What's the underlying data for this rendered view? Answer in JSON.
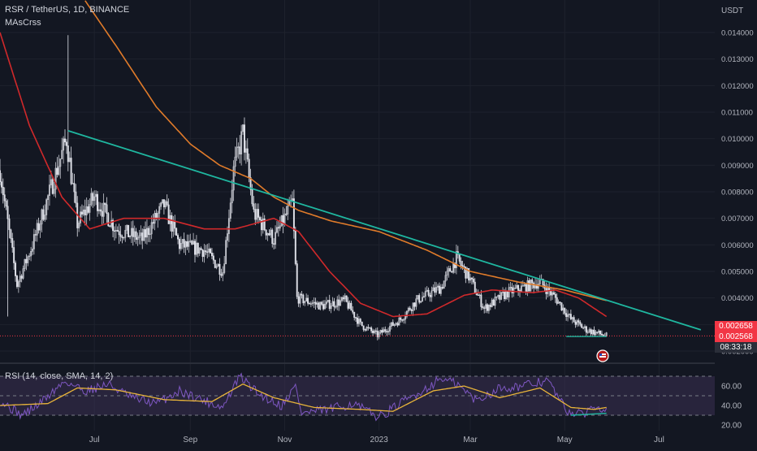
{
  "header": {
    "symbol_line": "RSR / TetherUS, 1D, BINANCE",
    "indicator_name": "MAsCrss",
    "currency": "USDT"
  },
  "rsi_panel": {
    "label": "RSI (14, close, SMA, 14, 2)",
    "y_ticks": [
      "60.00",
      "40.00",
      "20.00"
    ]
  },
  "price_tags": {
    "ma_value": "0.002658",
    "last_price": "0.002568",
    "countdown": "08:33:18"
  },
  "colors": {
    "background": "#131722",
    "candle_up": "#c7c9d1",
    "candle_down": "#e0e2ea",
    "ma_fast": "#d0292b",
    "ma_slow": "#e07b2a",
    "trendline": "#1fb7a0",
    "support_line": "#f23645",
    "rsi_line": "#7e57c2",
    "rsi_ma": "#e8b43a",
    "rsi_band": "#3a2f52",
    "price_tag_red": "#f23645",
    "countdown_bg": "#2a2e39",
    "axis_text": "#b2b5be"
  },
  "chart_data": {
    "type": "candlestick",
    "x_range": [
      "2022-05-01",
      "2023-08-06"
    ],
    "y_range": [
      0.0018,
      0.0152
    ],
    "x_tick_labels": [
      "Jul",
      "Sep",
      "Nov",
      "2023",
      "Mar",
      "May",
      "Jul"
    ],
    "x_tick_dates": [
      "2022-07-01",
      "2022-09-01",
      "2022-11-01",
      "2023-01-01",
      "2023-03-01",
      "2023-05-01",
      "2023-07-01"
    ],
    "y_tick_labels": [
      "0.014000",
      "0.013000",
      "0.012000",
      "0.011000",
      "0.010000",
      "0.009000",
      "0.008000",
      "0.007000",
      "0.006000",
      "0.005000",
      "0.004000",
      "0.003000",
      "0.002000"
    ],
    "y_ticks": [
      0.014,
      0.013,
      0.012,
      0.011,
      0.01,
      0.009,
      0.008,
      0.007,
      0.006,
      0.005,
      0.004,
      0.003,
      0.002
    ],
    "price_keyframes": [
      [
        "2022-05-01",
        0.0088
      ],
      [
        "2022-05-12",
        0.0045
      ],
      [
        "2022-05-22",
        0.006
      ],
      [
        "2022-06-05",
        0.0085
      ],
      [
        "2022-06-13",
        0.01
      ],
      [
        "2022-06-20",
        0.0068
      ],
      [
        "2022-07-01",
        0.0078
      ],
      [
        "2022-07-15",
        0.0066
      ],
      [
        "2022-08-01",
        0.0062
      ],
      [
        "2022-08-15",
        0.0075
      ],
      [
        "2022-08-25",
        0.006
      ],
      [
        "2022-09-10",
        0.0058
      ],
      [
        "2022-09-22",
        0.005
      ],
      [
        "2022-09-29",
        0.0088
      ],
      [
        "2022-10-05",
        0.0102
      ],
      [
        "2022-10-12",
        0.0072
      ],
      [
        "2022-10-25",
        0.0062
      ],
      [
        "2022-11-06",
        0.0076
      ],
      [
        "2022-11-09",
        0.004
      ],
      [
        "2022-11-25",
        0.0037
      ],
      [
        "2022-12-10",
        0.0039
      ],
      [
        "2022-12-20",
        0.003
      ],
      [
        "2022-12-31",
        0.0026
      ],
      [
        "2023-01-15",
        0.0032
      ],
      [
        "2023-01-25",
        0.0039
      ],
      [
        "2023-02-10",
        0.0044
      ],
      [
        "2023-02-20",
        0.0055
      ],
      [
        "2023-02-28",
        0.0048
      ],
      [
        "2023-03-10",
        0.0036
      ],
      [
        "2023-03-25",
        0.0042
      ],
      [
        "2023-04-15",
        0.0046
      ],
      [
        "2023-04-25",
        0.004
      ],
      [
        "2023-05-05",
        0.0032
      ],
      [
        "2023-05-15",
        0.0028
      ],
      [
        "2023-05-28",
        0.00257
      ]
    ],
    "ma_fast": [
      [
        "2022-05-01",
        0.014
      ],
      [
        "2022-05-20",
        0.0105
      ],
      [
        "2022-06-10",
        0.0078
      ],
      [
        "2022-06-28",
        0.0066
      ],
      [
        "2022-07-20",
        0.007
      ],
      [
        "2022-08-15",
        0.007
      ],
      [
        "2022-09-10",
        0.0066
      ],
      [
        "2022-09-30",
        0.0066
      ],
      [
        "2022-10-25",
        0.007
      ],
      [
        "2022-11-10",
        0.0065
      ],
      [
        "2022-11-30",
        0.005
      ],
      [
        "2022-12-20",
        0.0038
      ],
      [
        "2023-01-10",
        0.0033
      ],
      [
        "2023-02-01",
        0.0034
      ],
      [
        "2023-02-25",
        0.0041
      ],
      [
        "2023-03-15",
        0.0043
      ],
      [
        "2023-04-10",
        0.0042
      ],
      [
        "2023-04-25",
        0.0043
      ],
      [
        "2023-05-10",
        0.004
      ],
      [
        "2023-05-28",
        0.0033
      ]
    ],
    "ma_slow": [
      [
        "2022-06-25",
        0.0152
      ],
      [
        "2022-07-15",
        0.0135
      ],
      [
        "2022-08-10",
        0.0112
      ],
      [
        "2022-09-01",
        0.0098
      ],
      [
        "2022-09-20",
        0.009
      ],
      [
        "2022-10-10",
        0.0085
      ],
      [
        "2022-10-25",
        0.0078
      ],
      [
        "2022-11-10",
        0.0073
      ],
      [
        "2022-12-01",
        0.0069
      ],
      [
        "2023-01-01",
        0.0065
      ],
      [
        "2023-02-01",
        0.0058
      ],
      [
        "2023-03-01",
        0.005
      ],
      [
        "2023-04-01",
        0.0046
      ],
      [
        "2023-05-01",
        0.0043
      ],
      [
        "2023-05-28",
        0.0039
      ]
    ],
    "trendline": [
      [
        "2022-06-14",
        0.0103
      ],
      [
        "2023-07-28",
        0.0028
      ]
    ],
    "support_level": 0.00257,
    "support_trendline": [
      [
        "2023-05-02",
        0.00258
      ],
      [
        "2023-05-28",
        0.00258
      ]
    ],
    "rsi": {
      "y_range": [
        16,
        77
      ],
      "levels": [
        70,
        50,
        30
      ],
      "rsi_keyframes": [
        [
          "2022-05-01",
          45
        ],
        [
          "2022-05-15",
          30
        ],
        [
          "2022-05-25",
          40
        ],
        [
          "2022-06-12",
          65
        ],
        [
          "2022-06-25",
          55
        ],
        [
          "2022-07-10",
          62
        ],
        [
          "2022-07-25",
          48
        ],
        [
          "2022-08-10",
          42
        ],
        [
          "2022-08-25",
          55
        ],
        [
          "2022-09-10",
          45
        ],
        [
          "2022-09-22",
          38
        ],
        [
          "2022-10-03",
          70
        ],
        [
          "2022-10-15",
          52
        ],
        [
          "2022-10-30",
          40
        ],
        [
          "2022-11-08",
          60
        ],
        [
          "2022-11-12",
          32
        ],
        [
          "2022-11-30",
          36
        ],
        [
          "2022-12-15",
          42
        ],
        [
          "2023-01-01",
          28
        ],
        [
          "2023-01-15",
          42
        ],
        [
          "2023-02-01",
          58
        ],
        [
          "2023-02-10",
          68
        ],
        [
          "2023-02-20",
          62
        ],
        [
          "2023-03-05",
          45
        ],
        [
          "2023-03-20",
          58
        ],
        [
          "2023-04-05",
          60
        ],
        [
          "2023-04-20",
          66
        ],
        [
          "2023-05-02",
          35
        ],
        [
          "2023-05-12",
          30
        ],
        [
          "2023-05-20",
          40
        ],
        [
          "2023-05-28",
          37
        ]
      ],
      "rsi_ma_keyframes": [
        [
          "2022-05-01",
          40
        ],
        [
          "2022-06-01",
          42
        ],
        [
          "2022-06-20",
          58
        ],
        [
          "2022-07-15",
          56
        ],
        [
          "2022-08-15",
          46
        ],
        [
          "2022-09-15",
          44
        ],
        [
          "2022-10-05",
          62
        ],
        [
          "2022-10-25",
          48
        ],
        [
          "2022-11-20",
          38
        ],
        [
          "2022-12-20",
          36
        ],
        [
          "2023-01-10",
          34
        ],
        [
          "2023-02-05",
          55
        ],
        [
          "2023-02-25",
          60
        ],
        [
          "2023-03-20",
          48
        ],
        [
          "2023-04-15",
          58
        ],
        [
          "2023-05-05",
          38
        ],
        [
          "2023-05-20",
          36
        ],
        [
          "2023-05-28",
          38
        ]
      ],
      "divergence_line": [
        [
          "2023-05-05",
          30
        ],
        [
          "2023-05-28",
          32
        ]
      ]
    }
  }
}
